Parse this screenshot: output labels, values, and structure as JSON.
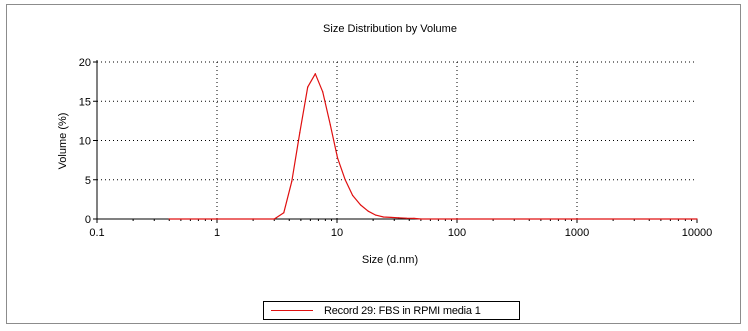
{
  "chart_data": {
    "type": "line",
    "title": "Size Distribution by Volume",
    "xlabel": "Size (d.nm)",
    "ylabel": "Volume (%)",
    "xscale": "log",
    "xlim": [
      0.1,
      10000
    ],
    "ylim": [
      0,
      20
    ],
    "xticks": [
      "0.1",
      "1",
      "10",
      "100",
      "1000",
      "10000"
    ],
    "yticks": [
      "0",
      "5",
      "10",
      "15",
      "20"
    ],
    "grid": "dotted",
    "legend_position": "bottom",
    "series": [
      {
        "name": "Record 29: FBS in RPMI media 1",
        "color": "#e01010",
        "x": [
          0.4,
          1,
          2,
          3.0,
          3.6,
          4.2,
          4.9,
          5.7,
          6.6,
          7.6,
          8.8,
          10.1,
          11.7,
          13.5,
          15.7,
          18.2,
          21.0,
          24.4,
          28.2,
          32.7,
          37.8,
          43.8,
          50,
          100,
          1000,
          10000
        ],
        "y": [
          0,
          0,
          0,
          0,
          0.8,
          4.8,
          11.0,
          16.8,
          18.5,
          16.2,
          12.0,
          7.8,
          5.0,
          3.0,
          1.8,
          1.0,
          0.5,
          0.25,
          0.2,
          0.15,
          0.1,
          0.08,
          0,
          0,
          0,
          0
        ]
      }
    ]
  }
}
